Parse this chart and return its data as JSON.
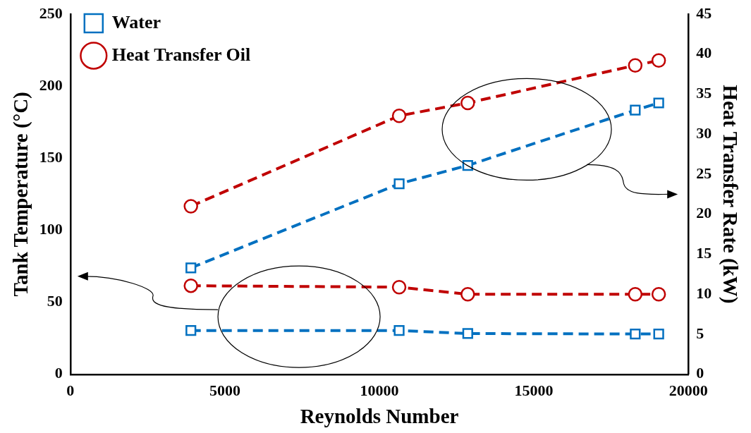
{
  "chart_data": {
    "type": "line",
    "xlabel": "Reynolds Number",
    "ylabel": "Tank Temperature (°C)",
    "y2label": "Heat Transfer Rate (kW)",
    "x": [
      3900,
      10640,
      12860,
      18280,
      19040
    ],
    "series": [
      {
        "name": "Water",
        "color": "#0070c0",
        "marker": "square",
        "line_style": "dashed",
        "values": [
          30.4,
          30.4,
          28.3,
          28,
          28
        ]
      },
      {
        "name": "Heat Transfer Oil",
        "color": "#c00000",
        "marker": "circle",
        "line_style": "dashed",
        "values": [
          61.5,
          60.5,
          55.6,
          55.6,
          55.6
        ]
      },
      {
        "color": "#0070c0",
        "marker": "square",
        "line_style": "dashed",
        "axis": "y2",
        "values": [
          13.3,
          23.8,
          26.1,
          33,
          33.9
        ]
      },
      {
        "color": "#c00000",
        "marker": "circle",
        "line_style": "dashed",
        "axis": "y2",
        "values": [
          21,
          32.3,
          33.9,
          38.6,
          39.2
        ]
      }
    ],
    "xlim": [
      0,
      20000
    ],
    "xticks": [
      0,
      5000,
      10000,
      15000,
      20000
    ],
    "ylim": [
      0,
      250
    ],
    "yticks": [
      0,
      50,
      100,
      150,
      200,
      250
    ],
    "y2lim": [
      0,
      45
    ],
    "y2ticks": [
      0,
      5,
      10,
      15,
      20,
      25,
      30,
      35,
      40,
      45
    ],
    "grid": false,
    "legend": "top left"
  }
}
